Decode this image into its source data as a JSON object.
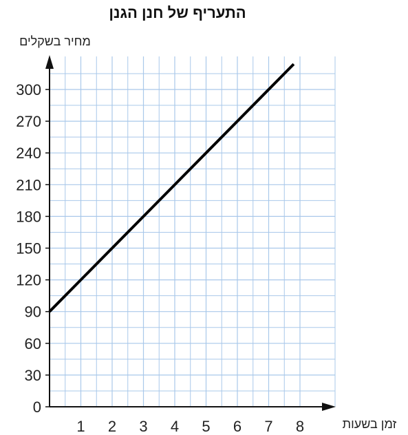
{
  "chart_data": {
    "type": "line",
    "title": "התעריף של חנן הגנן",
    "ylabel": "מחיר בשקלים",
    "xlabel": "זמן בשעות",
    "x_ticks": [
      1,
      2,
      3,
      4,
      5,
      6,
      7,
      8
    ],
    "y_ticks": [
      0,
      30,
      60,
      90,
      120,
      150,
      180,
      210,
      240,
      270,
      300
    ],
    "xlim": [
      0,
      9
    ],
    "ylim": [
      0,
      330
    ],
    "grid": true,
    "series": [
      {
        "x": [
          0,
          7.8
        ],
        "y": [
          90,
          324
        ],
        "color": "#000000"
      }
    ],
    "colors": {
      "grid": "#a9c8ea",
      "axis": "#111111",
      "line": "#000000"
    }
  }
}
